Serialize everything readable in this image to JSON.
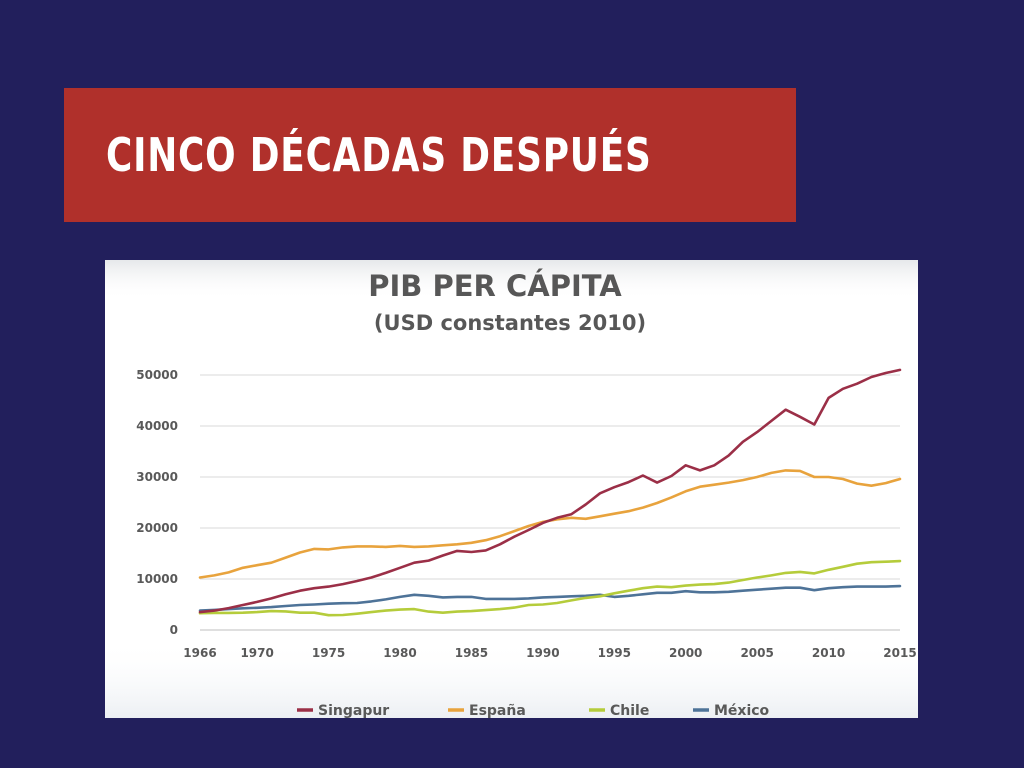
{
  "slide": {
    "title": "CINCO DÉCADAS DESPUÉS",
    "background_color": "#221f5c",
    "banner_color": "#b0302b"
  },
  "chart_data": {
    "type": "line",
    "title": "PIB PER CÁPITA",
    "subtitle": "(USD constantes 2010)",
    "xlabel": "",
    "ylabel": "",
    "ylim": [
      0,
      50000
    ],
    "xlim": [
      1966,
      2015
    ],
    "yticks": [
      0,
      10000,
      20000,
      30000,
      40000,
      50000
    ],
    "ytick_labels": [
      "0",
      "10000",
      "20000",
      "30000",
      "40000",
      "50000"
    ],
    "xticks": [
      1966,
      1970,
      1975,
      1980,
      1985,
      1990,
      1995,
      2000,
      2005,
      2010,
      2015
    ],
    "xtick_labels": [
      "1966",
      "1970",
      "1975",
      "1980",
      "1985",
      "1990",
      "1995",
      "2000",
      "2005",
      "2010",
      "2015"
    ],
    "grid": true,
    "legend_position": "bottom",
    "x": [
      1966,
      1967,
      1968,
      1969,
      1970,
      1971,
      1972,
      1973,
      1974,
      1975,
      1976,
      1977,
      1978,
      1979,
      1980,
      1981,
      1982,
      1983,
      1984,
      1985,
      1986,
      1987,
      1988,
      1989,
      1990,
      1991,
      1992,
      1993,
      1994,
      1995,
      1996,
      1997,
      1998,
      1999,
      2000,
      2001,
      2002,
      2003,
      2004,
      2005,
      2006,
      2007,
      2008,
      2009,
      2010,
      2011,
      2012,
      2013,
      2014,
      2015
    ],
    "series": [
      {
        "name": "Singapur",
        "color": "#9b2f47",
        "values": [
          3500,
          3800,
          4300,
          4900,
          5500,
          6200,
          7000,
          7700,
          8200,
          8500,
          9000,
          9600,
          10300,
          11200,
          12200,
          13200,
          13600,
          14600,
          15500,
          15300,
          15600,
          16800,
          18300,
          19600,
          21000,
          22000,
          22700,
          24600,
          26800,
          28000,
          29000,
          30300,
          28900,
          30200,
          32300,
          31300,
          32300,
          34200,
          36900,
          38800,
          41000,
          43200,
          41800,
          40300,
          45500,
          47300,
          48300,
          49600,
          50400,
          51000
        ]
      },
      {
        "name": "España",
        "color": "#e8a33d",
        "values": [
          10300,
          10700,
          11300,
          12200,
          12700,
          13200,
          14200,
          15200,
          15900,
          15800,
          16200,
          16400,
          16400,
          16300,
          16500,
          16300,
          16400,
          16600,
          16800,
          17100,
          17600,
          18400,
          19400,
          20400,
          21200,
          21700,
          22000,
          21800,
          22300,
          22800,
          23300,
          24000,
          24900,
          26000,
          27200,
          28100,
          28500,
          28900,
          29400,
          30000,
          30800,
          31300,
          31200,
          30000,
          30000,
          29600,
          28700,
          28300,
          28800,
          29600
        ]
      },
      {
        "name": "Chile",
        "color": "#b5cc3b",
        "values": [
          3300,
          3350,
          3350,
          3400,
          3500,
          3700,
          3650,
          3400,
          3400,
          2900,
          2950,
          3200,
          3500,
          3800,
          4000,
          4100,
          3600,
          3400,
          3600,
          3700,
          3900,
          4100,
          4400,
          4900,
          5000,
          5300,
          5800,
          6300,
          6600,
          7200,
          7700,
          8200,
          8500,
          8400,
          8700,
          8900,
          9000,
          9300,
          9800,
          10300,
          10700,
          11200,
          11400,
          11100,
          11800,
          12400,
          13000,
          13300,
          13400,
          13500
        ]
      },
      {
        "name": "México",
        "color": "#4e7398",
        "values": [
          3800,
          3950,
          4100,
          4250,
          4350,
          4500,
          4700,
          4900,
          5000,
          5150,
          5250,
          5300,
          5600,
          6000,
          6500,
          6900,
          6700,
          6400,
          6500,
          6500,
          6100,
          6100,
          6100,
          6200,
          6400,
          6500,
          6600,
          6700,
          6900,
          6500,
          6700,
          7000,
          7300,
          7300,
          7600,
          7400,
          7400,
          7500,
          7700,
          7900,
          8100,
          8300,
          8300,
          7800,
          8200,
          8400,
          8500,
          8500,
          8500,
          8600
        ]
      }
    ]
  }
}
